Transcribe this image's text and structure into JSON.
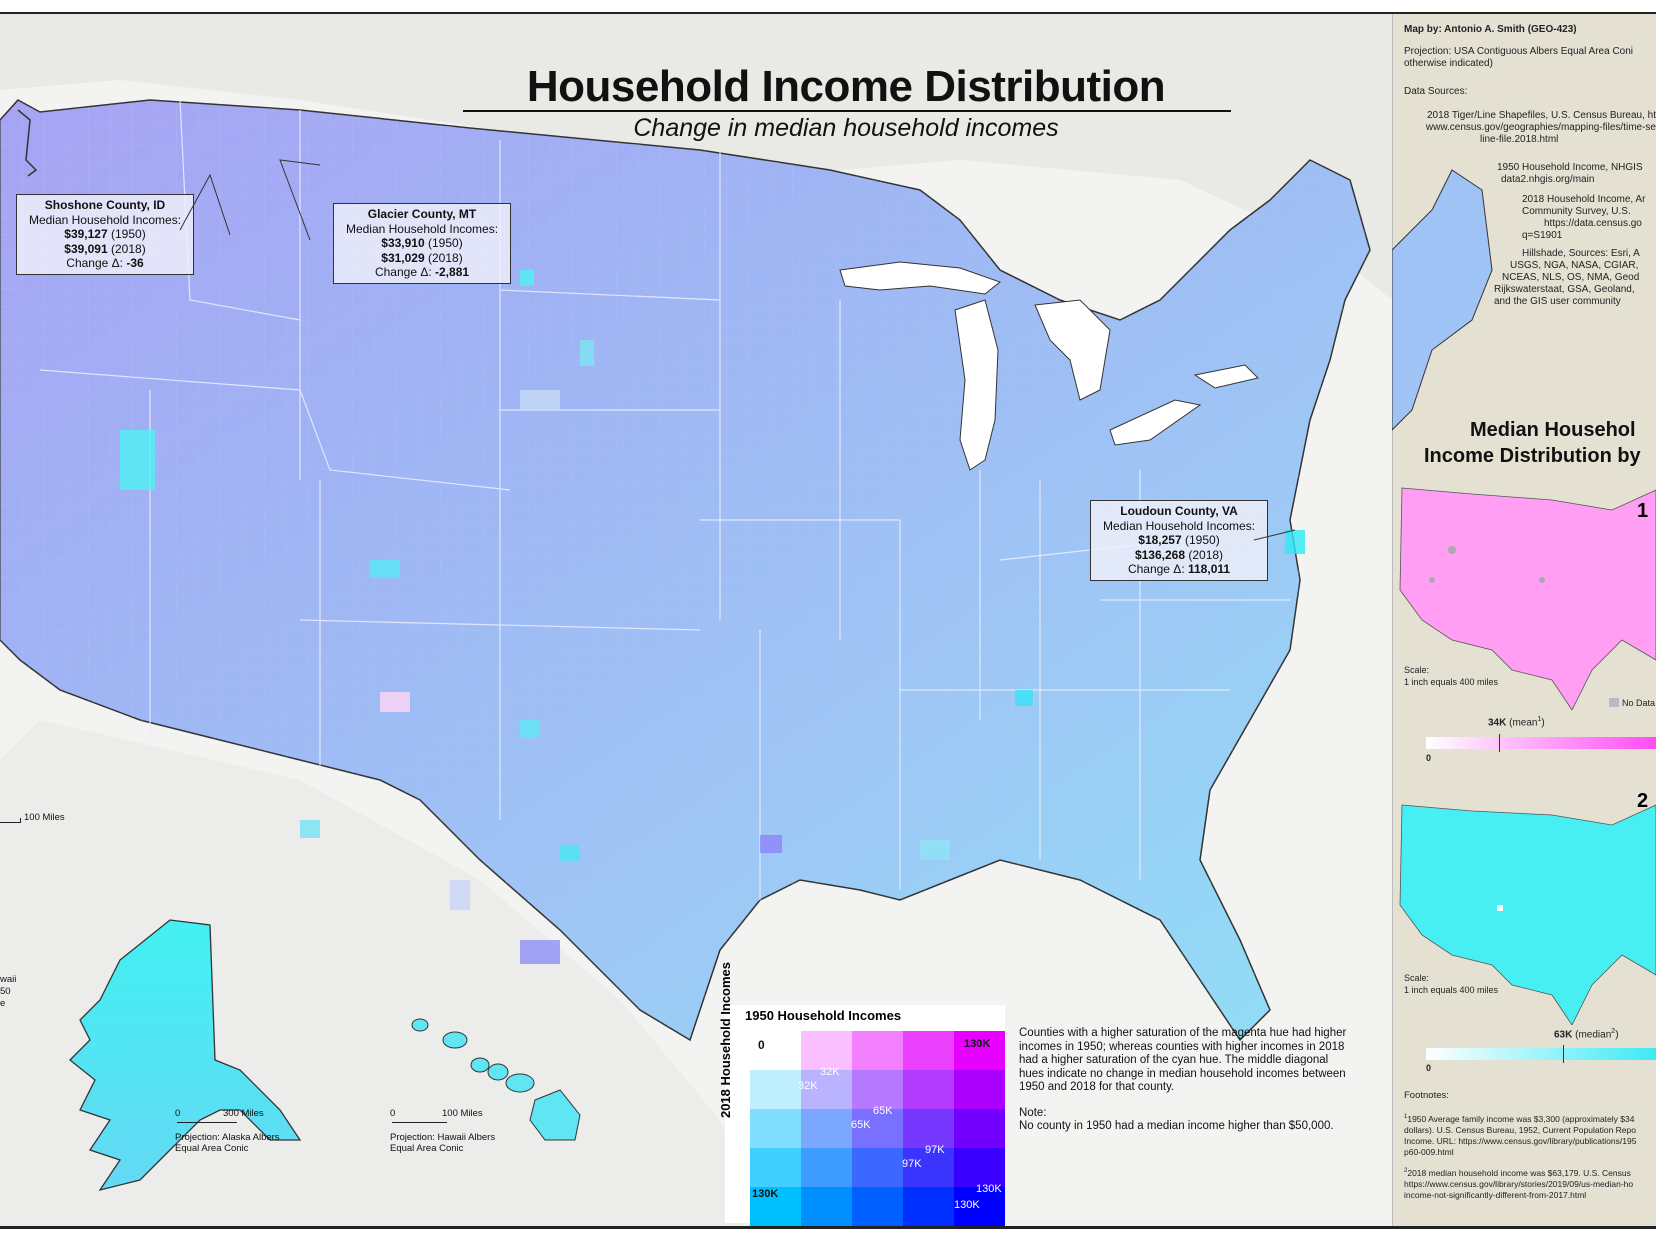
{
  "map": {
    "title": "Household Income Distribution",
    "subtitle": "Change in median household incomes",
    "colors": {
      "background": "#ffffff",
      "sidebar": "#e4e1d3",
      "dominant": "#9fb7f2",
      "cyan": "#3ff2f2",
      "magenta": "#ff33ff",
      "blue": "#2a2aff"
    }
  },
  "callouts": [
    {
      "county": "Shoshone County, ID",
      "label": "Median Household Incomes:",
      "v1950": "$39,127",
      "y1950": "(1950)",
      "v2018": "$39,091",
      "y2018": "(2018)",
      "change_label": "Change Δ:",
      "change": "-36"
    },
    {
      "county": "Glacier County, MT",
      "label": "Median Household Incomes:",
      "v1950": "$33,910",
      "y1950": "(1950)",
      "v2018": "$31,029",
      "y2018": "(2018)",
      "change_label": "Change Δ:",
      "change": "-2,881"
    },
    {
      "county": "Loudoun County, VA",
      "label": "Median Household Incomes:",
      "v1950": "$18,257",
      "y1950": "(1950)",
      "v2018": "$136,268",
      "y2018": "(2018)",
      "change_label": "Change Δ:",
      "change": "118,011"
    }
  ],
  "scalebars": {
    "main": "100 Miles",
    "alaska_zero": "0",
    "alaska": "300 Miles",
    "hawaii_zero": "0",
    "hawaii": "100 Miles"
  },
  "insets": {
    "alaska_proj": "Projection: Alaska Albers Equal Area Conic",
    "hawaii_proj": "Projection: Hawaii Albers Equal Area Conic",
    "partial_left": [
      "waii",
      "50",
      "e"
    ]
  },
  "legend": {
    "x_title": "1950 Household Incomes",
    "y_title": "2018 Household Incomes",
    "labels": {
      "zero": "0",
      "top_right": "130K",
      "bottom_left": "130K",
      "d32a": "32K",
      "d32b": "32K",
      "d65a": "65K",
      "d65b": "65K",
      "d97a": "97K",
      "d97b": "97K",
      "d130a": "130K",
      "d130b": "130K"
    },
    "text": "Counties with a higher saturation of the magenta hue had higher incomes in 1950; whereas counties with higher incomes in 2018 had a higher saturation of the cyan hue. The middle diagonal hues indicate no change in median household incomes between 1950 and 2018 for that county.",
    "note_title": "Note:",
    "note": "No county in 1950 had a median income higher than $50,000."
  },
  "sidebar": {
    "map_by": "Map by: Antonio A. Smith (GEO-423)",
    "projection": "Projection: USA Contiguous Albers Equal Area Coni",
    "projection2": "otherwise indicated)",
    "data_sources": "Data Sources:",
    "src1a": "2018 Tiger/Line Shapefiles, U.S. Census Bureau, ht",
    "src1b": "www.census.gov/geographies/mapping-files/time-se",
    "src1c": "line-file.2018.html",
    "src2a": "1950 Household Income, NHGIS",
    "src2b": "data2.nhgis.org/main",
    "src3a": "2018 Household Income, Ar",
    "src3b": "Community Survey, U.S.",
    "src3c": "https://data.census.go",
    "src3d": "q=S1901",
    "src4a": "Hillshade, Sources: Esri, A",
    "src4b": "USGS, NGA, NASA, CGIAR,",
    "src4c": "NCEAS, NLS, OS, NMA, Geod",
    "src4d": "Rijkswaterstaat, GSA, Geoland,",
    "src4e": "and the GIS user community",
    "dist_title1": "Median Househol",
    "dist_title2": "Income Distribution by",
    "inset1_mark": "1",
    "inset2_mark": "2",
    "scale_label": "Scale:",
    "scale_val": "1 inch equals 400 miles",
    "scale_label2": "Scale:",
    "scale_val2": "1 inch equals 400 miles",
    "no_data": "No Data",
    "bar1_val": "34K",
    "bar1_note": "(mean",
    "bar1_sup": "1",
    "bar1_close": ")",
    "bar1_zero": "0",
    "bar2_val": "63K",
    "bar2_note": "(median",
    "bar2_sup": "2",
    "bar2_close": ")",
    "bar2_zero": "0",
    "footnotes_title": "Footnotes:",
    "fn1a": "1950 Average family income was $3,300 (approximately $34",
    "fn1b": "dollars). U.S. Census Bureau, 1952, Current Population Repo",
    "fn1c": "Income. URL: https://www.census.gov/library/publications/195",
    "fn1d": "p60-009.html",
    "fn2a": "2018 median household income was $63,179. U.S. Census",
    "fn2b": "https://www.census.gov/library/stories/2019/09/us-median-ho",
    "fn2c": "income-not-significantly-different-from-2017.html"
  }
}
